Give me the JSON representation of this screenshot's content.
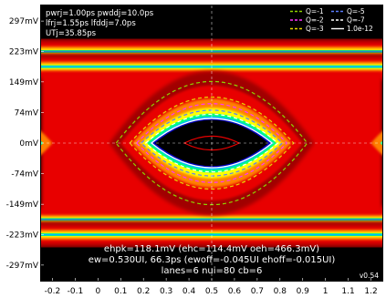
{
  "chart_data": {
    "type": "heatmap",
    "subtype": "eye-diagram",
    "title": "",
    "xlabel": "",
    "ylabel": "",
    "x_ticks": [
      "-0.2",
      "-0.1",
      "0",
      "0.1",
      "0.2",
      "0.3",
      "0.4",
      "0.5",
      "0.6",
      "0.7",
      "0.8",
      "0.9",
      "1",
      "1.1",
      "1.2"
    ],
    "x_tick_values": [
      -0.2,
      -0.1,
      0,
      0.1,
      0.2,
      0.3,
      0.4,
      0.5,
      0.6,
      0.7,
      0.8,
      0.9,
      1,
      1.1,
      1.2
    ],
    "y_ticks": [
      "297mV",
      "223mV",
      "149mV",
      "74mV",
      "0mV",
      "-74mV",
      "-149mV",
      "-223mV",
      "-297mV"
    ],
    "y_tick_values": [
      297,
      223,
      149,
      74,
      0,
      -74,
      -149,
      -223,
      -297
    ],
    "xlim": [
      -0.25,
      1.25
    ],
    "ylim": [
      -335,
      335
    ],
    "colormap": [
      "#000000",
      "#0000c0",
      "#00b4ff",
      "#00ff80",
      "#ffff00",
      "#ff8000",
      "#e80000",
      "#a00000"
    ],
    "rails_mV": [
      223,
      186,
      -186,
      -223
    ],
    "eye": {
      "center_ui": 0.5,
      "left_crossing_ui": 0.2,
      "right_crossing_ui": 0.8,
      "height_mV": 118.1
    },
    "contours": [
      {
        "name": "Q=-1",
        "color": "#8fd400",
        "style": "dashed",
        "half_width_ui": 0.42,
        "half_height_mV": 150
      },
      {
        "name": "Q=-3",
        "color": "#e8d800",
        "style": "dashed",
        "half_width_ui": 0.36,
        "half_height_mV": 112
      },
      {
        "name": "Q=-2",
        "color": "#ff33ff",
        "style": "dashed",
        "half_width_ui": 0.33,
        "half_height_mV": 96
      },
      {
        "name": "Q=-5",
        "color": "#5a7cff",
        "style": "dashed",
        "half_width_ui": 0.31,
        "half_height_mV": 80
      },
      {
        "name": "Q=-7",
        "color": "#ffffff",
        "style": "dashed",
        "half_width_ui": 0.29,
        "half_height_mV": 70
      },
      {
        "name": "1.0e-12",
        "color": "#ffffff",
        "style": "solid",
        "half_width_ui": 0.265,
        "half_height_mV": 60
      }
    ],
    "inner_mask": {
      "color": "#e80000",
      "half_width_ui": 0.12,
      "half_height_mV": 17
    },
    "legend": [
      {
        "label": "Q=-1",
        "color": "#8fd400",
        "style": "dashed"
      },
      {
        "label": "Q=-5",
        "color": "#5a7cff",
        "style": "dashed"
      },
      {
        "label": "Q=-2",
        "color": "#ff33ff",
        "style": "dashed"
      },
      {
        "label": "Q=-7",
        "color": "#ffffff",
        "style": "dashed"
      },
      {
        "label": "Q=-3",
        "color": "#e8d800",
        "style": "dashed"
      },
      {
        "label": "1.0e-12",
        "color": "#ffffff",
        "style": "solid"
      }
    ],
    "legend_placement": "top-right",
    "annotations_top": [
      "pwrj=1.00ps pwddj=10.0ps",
      "lfrj=1.55ps lfddj=7.0ps",
      "UTj=35.85ps"
    ],
    "annotations_bottom": [
      "ehpk=118.1mV (ehc=114.4mV oeh=466.3mV)",
      "ew=0.530UI, 66.3ps (ewoff=-0.045UI ehoff=-0.015UI)",
      "lanes=6 nui=80 cb=6"
    ],
    "version": "v0.54",
    "grid": false,
    "crosshair_color": "#ffffff"
  }
}
